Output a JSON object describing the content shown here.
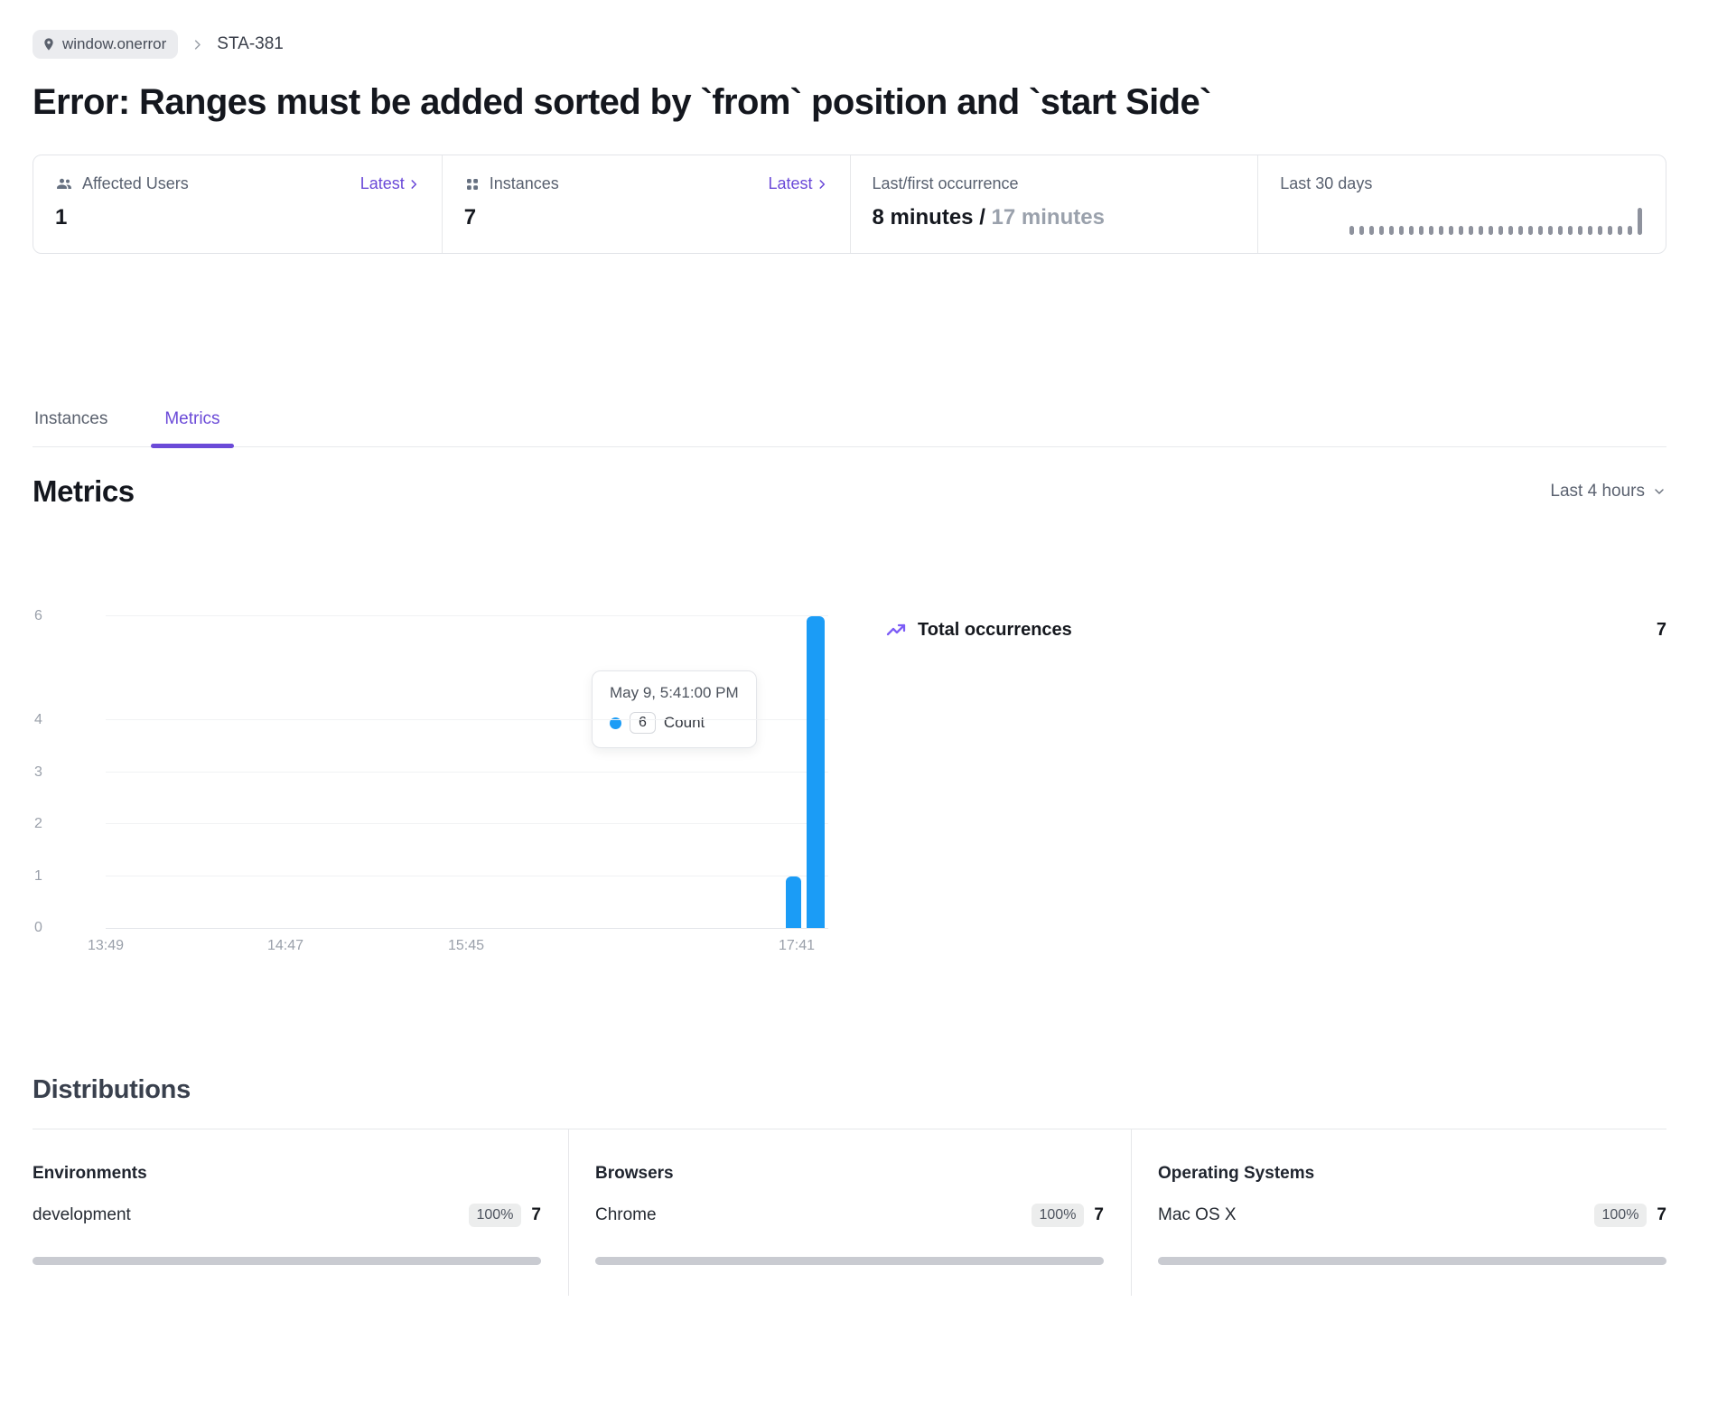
{
  "breadcrumb": {
    "context": "window.onerror",
    "issue_id": "STA-381"
  },
  "title": "Error: Ranges must be added sorted by `from` position and `start Side`",
  "stats": {
    "affected_users": {
      "label": "Affected Users",
      "link": "Latest",
      "value": "1"
    },
    "instances": {
      "label": "Instances",
      "link": "Latest",
      "value": "7"
    },
    "occurrence": {
      "label": "Last/first occurrence",
      "last": "8 minutes / ",
      "first": "17 minutes"
    },
    "last30": {
      "label": "Last 30 days",
      "values": [
        0,
        0,
        0,
        0,
        0,
        0,
        0,
        0,
        0,
        0,
        0,
        0,
        0,
        0,
        0,
        0,
        0,
        0,
        0,
        0,
        0,
        0,
        0,
        0,
        0,
        0,
        0,
        0,
        0,
        7
      ]
    }
  },
  "tabs": [
    {
      "label": "Instances",
      "active": false
    },
    {
      "label": "Metrics",
      "active": true
    }
  ],
  "metrics": {
    "heading": "Metrics",
    "range_selector": "Last 4 hours"
  },
  "chart_data": {
    "type": "bar",
    "series_name": "Count",
    "ylim": [
      0,
      6
    ],
    "y_ticks": [
      0,
      1,
      2,
      3,
      4,
      6
    ],
    "x_ticks": [
      {
        "label": "13:49",
        "x": 0
      },
      {
        "label": "14:47",
        "x": 199
      },
      {
        "label": "15:45",
        "x": 399
      },
      {
        "label": "17:41",
        "x": 765
      }
    ],
    "bars": [
      {
        "value": 1,
        "x": 753,
        "w": 17
      },
      {
        "value": 6,
        "x": 776,
        "w": 20
      }
    ],
    "tooltip": {
      "date": "May 9, 5:41:00 PM",
      "value": "6",
      "series": "Count"
    }
  },
  "legend": {
    "label": "Total occurrences",
    "value": "7"
  },
  "distributions": {
    "heading": "Distributions",
    "columns": [
      {
        "title": "Environments",
        "item": {
          "name": "development",
          "percent": "100%",
          "count": "7",
          "fraction": 1
        }
      },
      {
        "title": "Browsers",
        "item": {
          "name": "Chrome",
          "percent": "100%",
          "count": "7",
          "fraction": 1
        }
      },
      {
        "title": "Operating Systems",
        "item": {
          "name": "Mac OS X",
          "percent": "100%",
          "count": "7",
          "fraction": 1
        }
      }
    ]
  },
  "colors": {
    "accent_purple": "#6b4ad8",
    "icon_purple": "#7c5cf6",
    "bar_blue": "#1b9cf6",
    "spark_gray": "#8e929d",
    "progress_gray": "#c9cbd1"
  }
}
